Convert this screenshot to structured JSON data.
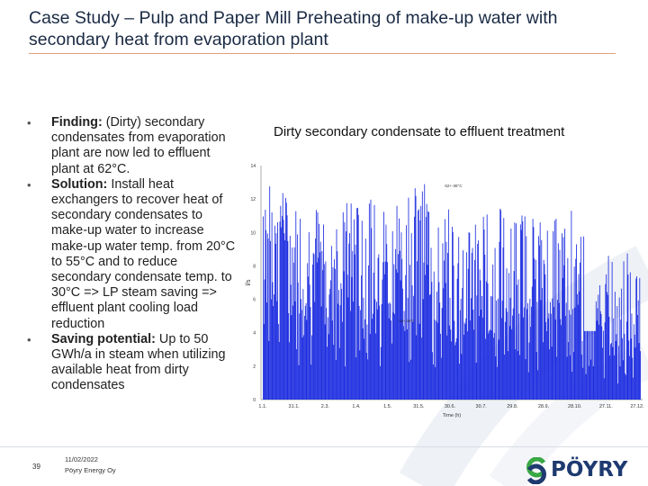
{
  "slide": {
    "title": "Case Study – Pulp and Paper Mill Preheating of make-up water with secondary heat from evaporation plant",
    "page_number": "39",
    "date": "11/02/2022",
    "company": "Pöyry Energy Oy",
    "logo_text": "PÖYRY"
  },
  "bullets": [
    {
      "heading": "Finding:",
      "text": " (Dirty) secondary condensates from evaporation plant are now led to effluent plant at 62°C."
    },
    {
      "heading": "Solution:",
      "text": " Install heat exchangers to recover heat of secondary condensates to make-up water to increase make-up water temp. from 20°C to 55°C and to reduce secondary condensate temp. to 30°C => LP steam saving => effluent plant cooling load reduction"
    },
    {
      "heading": "Saving potential:",
      "text": " Up to 50 GWh/a in steam when utilizing available heat from dirty condensates"
    }
  ],
  "chart_heading": "Dirty secondary condensate to effluent treatment",
  "chart_data": {
    "type": "bar",
    "xlabel": "Time (h)",
    "ylabel": "l/s",
    "ylim": [
      0,
      14
    ],
    "y_ticks": [
      "0",
      "2",
      "4",
      "6",
      "8",
      "10",
      "12",
      "14"
    ],
    "x_ticks": [
      "1.1.",
      "31.1.",
      "2.3.",
      "1.4.",
      "1.5.",
      "31.5.",
      "30.6.",
      "30.7.",
      "29.8.",
      "28.9.",
      "28.10.",
      "27.11.",
      "27.12."
    ],
    "annotations": [
      "62+-38°C",
      "62+-38°C"
    ],
    "color": "#1f2fe0"
  }
}
